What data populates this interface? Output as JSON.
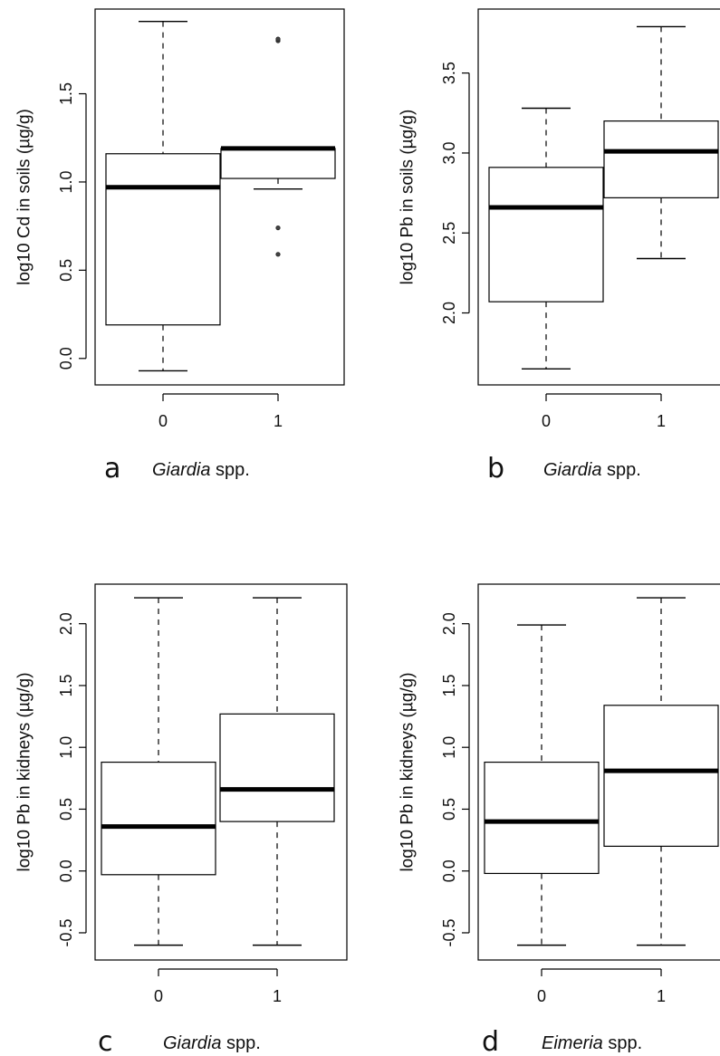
{
  "chart_data": [
    {
      "type": "box",
      "panel_letter": "a",
      "xlabel_italic": "Giardia",
      "xlabel_rest": " spp.",
      "ylabel": "log10 Cd in soils (µg/g)",
      "categories": [
        "0",
        "1"
      ],
      "yticks": [
        "0.0",
        "0.5",
        "1.0",
        "1.5"
      ],
      "ylim": [
        -0.15,
        1.98
      ],
      "boxes": [
        {
          "min": -0.07,
          "q1": 0.19,
          "median": 0.97,
          "q3": 1.16,
          "max": 1.91,
          "outliers": []
        },
        {
          "min": 0.96,
          "q1": 1.02,
          "median": 1.19,
          "q3": 1.19,
          "max": 1.19,
          "outliers": [
            1.8,
            1.81,
            0.74,
            0.59
          ]
        }
      ]
    },
    {
      "type": "box",
      "panel_letter": "b",
      "xlabel_italic": "Giardia",
      "xlabel_rest": " spp.",
      "ylabel": "log10 Pb in soils (µg/g)",
      "categories": [
        "0",
        "1"
      ],
      "yticks": [
        "2.0",
        "2.5",
        "3.0",
        "3.5"
      ],
      "ylim": [
        1.55,
        3.9
      ],
      "boxes": [
        {
          "min": 1.65,
          "q1": 2.07,
          "median": 2.66,
          "q3": 2.91,
          "max": 3.28,
          "outliers": []
        },
        {
          "min": 2.34,
          "q1": 2.72,
          "median": 3.01,
          "q3": 3.2,
          "max": 3.79,
          "outliers": []
        }
      ]
    },
    {
      "type": "box",
      "panel_letter": "c",
      "xlabel_italic": "Giardia",
      "xlabel_rest": " spp.",
      "ylabel": "log10 Pb in kidneys (µg/g)",
      "categories": [
        "0",
        "1"
      ],
      "yticks": [
        "-0.5",
        "0.0",
        "0.5",
        "1.0",
        "1.5",
        "2.0"
      ],
      "ylim": [
        -0.72,
        2.32
      ],
      "boxes": [
        {
          "min": -0.6,
          "q1": -0.03,
          "median": 0.36,
          "q3": 0.88,
          "max": 2.21,
          "outliers": []
        },
        {
          "min": -0.6,
          "q1": 0.4,
          "median": 0.66,
          "q3": 1.27,
          "max": 2.21,
          "outliers": []
        }
      ]
    },
    {
      "type": "box",
      "panel_letter": "d",
      "xlabel_italic": "Eimeria",
      "xlabel_rest": " spp.",
      "ylabel": "log10 Pb in kidneys (µg/g)",
      "categories": [
        "0",
        "1"
      ],
      "yticks": [
        "-0.5",
        "0.0",
        "0.5",
        "1.0",
        "1.5",
        "2.0"
      ],
      "ylim": [
        -0.72,
        2.32
      ],
      "boxes": [
        {
          "min": -0.6,
          "q1": -0.02,
          "median": 0.4,
          "q3": 0.88,
          "max": 1.99,
          "outliers": []
        },
        {
          "min": -0.6,
          "q1": 0.2,
          "median": 0.81,
          "q3": 1.34,
          "max": 2.21,
          "outliers": []
        }
      ]
    }
  ]
}
